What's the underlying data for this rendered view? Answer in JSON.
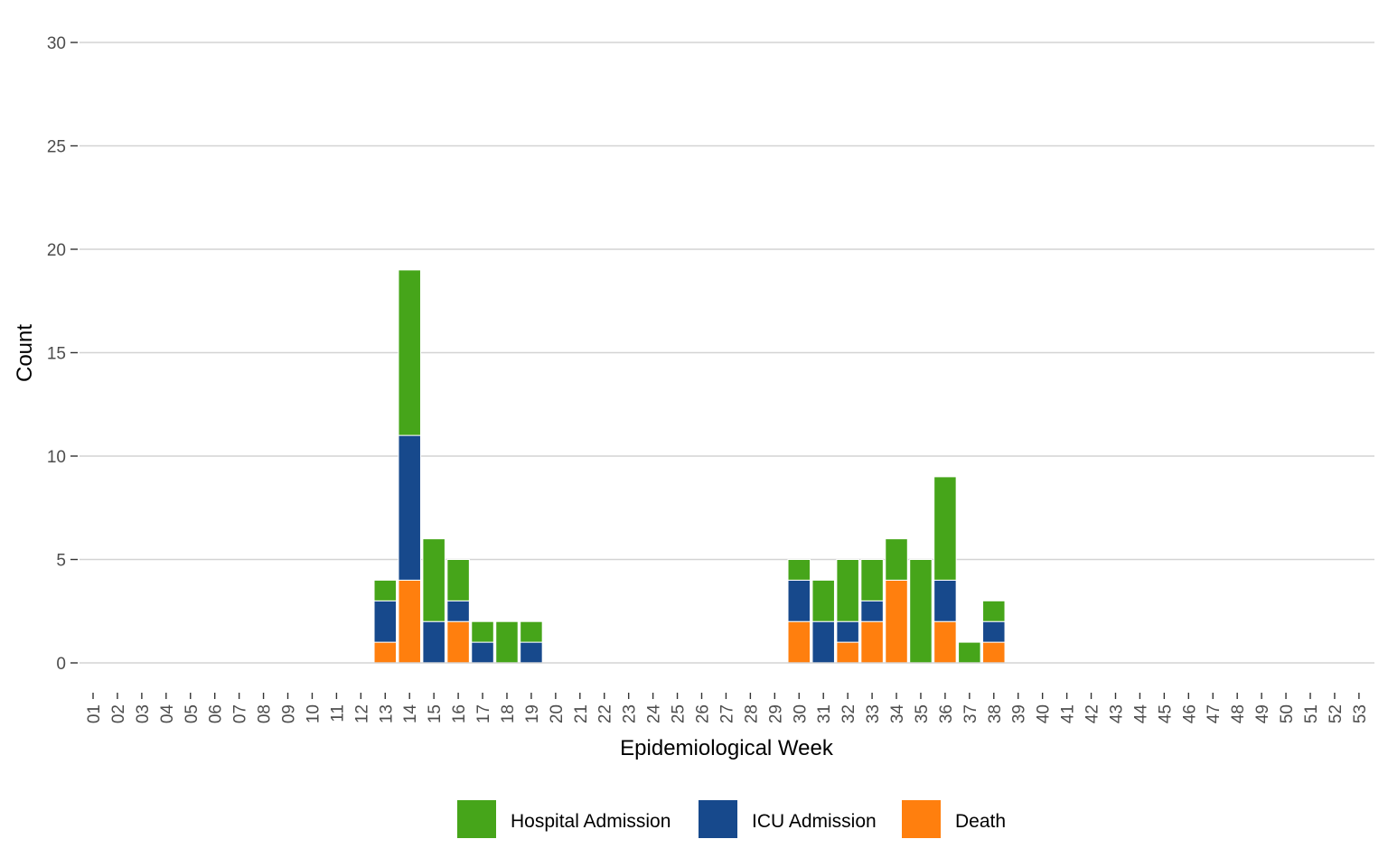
{
  "chart_data": {
    "type": "bar",
    "stacked": true,
    "xlabel": "Epidemiological Week",
    "ylabel": "Count",
    "ylim": [
      0,
      30
    ],
    "yticks": [
      "0",
      "5",
      "10",
      "15",
      "20",
      "25",
      "30"
    ],
    "categories": [
      "01",
      "02",
      "03",
      "04",
      "05",
      "06",
      "07",
      "08",
      "09",
      "10",
      "11",
      "12",
      "13",
      "14",
      "15",
      "16",
      "17",
      "18",
      "19",
      "20",
      "21",
      "22",
      "23",
      "24",
      "25",
      "26",
      "27",
      "28",
      "29",
      "30",
      "31",
      "32",
      "33",
      "34",
      "35",
      "36",
      "37",
      "38",
      "39",
      "40",
      "41",
      "42",
      "43",
      "44",
      "45",
      "46",
      "47",
      "48",
      "49",
      "50",
      "51",
      "52",
      "53"
    ],
    "series": [
      {
        "name": "Death",
        "color": "#FF7F0E",
        "values": [
          0,
          0,
          0,
          0,
          0,
          0,
          0,
          0,
          0,
          0,
          0,
          0,
          1,
          4,
          0,
          2,
          0,
          0,
          0,
          0,
          0,
          0,
          0,
          0,
          0,
          0,
          0,
          0,
          0,
          2,
          0,
          1,
          2,
          4,
          0,
          2,
          0,
          1,
          0,
          0,
          0,
          0,
          0,
          0,
          0,
          0,
          0,
          0,
          0,
          0,
          0,
          0,
          0
        ]
      },
      {
        "name": "ICU Admission",
        "color": "#17498C",
        "values": [
          0,
          0,
          0,
          0,
          0,
          0,
          0,
          0,
          0,
          0,
          0,
          0,
          2,
          7,
          2,
          1,
          1,
          0,
          1,
          0,
          0,
          0,
          0,
          0,
          0,
          0,
          0,
          0,
          0,
          2,
          2,
          1,
          1,
          0,
          0,
          2,
          0,
          1,
          0,
          0,
          0,
          0,
          0,
          0,
          0,
          0,
          0,
          0,
          0,
          0,
          0,
          0,
          0
        ]
      },
      {
        "name": "Hospital Admission",
        "color": "#46A51A",
        "values": [
          0,
          0,
          0,
          0,
          0,
          0,
          0,
          0,
          0,
          0,
          0,
          0,
          1,
          8,
          4,
          2,
          1,
          2,
          1,
          0,
          0,
          0,
          0,
          0,
          0,
          0,
          0,
          0,
          0,
          1,
          2,
          3,
          2,
          2,
          5,
          5,
          1,
          1,
          0,
          0,
          0,
          0,
          0,
          0,
          0,
          0,
          0,
          0,
          0,
          0,
          0,
          0,
          0
        ]
      }
    ],
    "legend": {
      "position": "bottom",
      "items": [
        {
          "label": "Hospital Admission",
          "color": "#46A51A"
        },
        {
          "label": "ICU Admission",
          "color": "#17498C"
        },
        {
          "label": "Death",
          "color": "#FF7F0E"
        }
      ]
    },
    "grid": true
  }
}
